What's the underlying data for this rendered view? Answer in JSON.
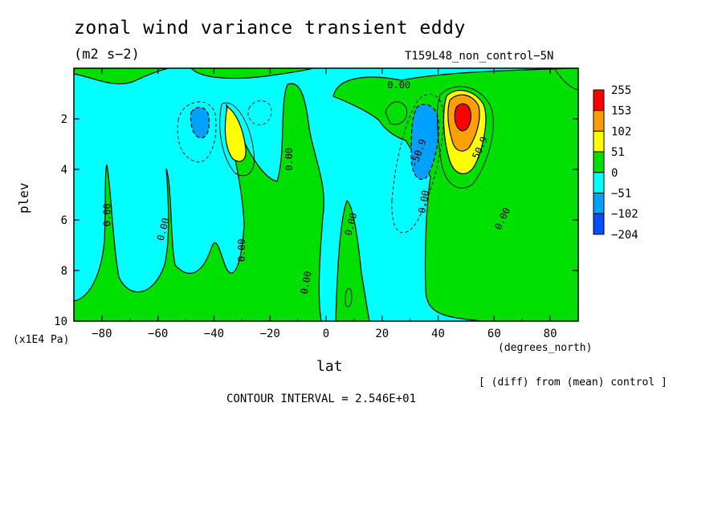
{
  "chart_data": {
    "type": "contour",
    "title": "zonal wind variance transient eddy",
    "units": "(m2 s−2)",
    "run_label": "T159L48_non_control−5N",
    "xlabel": "lat",
    "x_unit": "(degrees_north)",
    "ylabel": "plev",
    "y_unit": "(x1E4 Pa)",
    "xlim": [
      -90,
      90
    ],
    "ylim": [
      0,
      10
    ],
    "y_inverted": true,
    "x_ticks": [
      -80,
      -60,
      -40,
      -20,
      0,
      20,
      40,
      60,
      80
    ],
    "y_ticks": [
      2,
      4,
      6,
      8,
      10
    ],
    "colorbar": {
      "levels": [
        "255",
        "153",
        "102",
        "51",
        "0",
        "−51",
        "−102",
        "−204"
      ],
      "colors": [
        "#ff0000",
        "#ffa000",
        "#ffff00",
        "#00e000",
        "#00ffff",
        "#00a0ff",
        "#0050ff"
      ]
    },
    "contour_labels": [
      {
        "text": "0.00",
        "lat": 26,
        "plev": 0.8,
        "angle": 0
      },
      {
        "text": "0.00",
        "lat": -12,
        "plev": 3.6,
        "angle": -90
      },
      {
        "text": "0.00",
        "lat": -77,
        "plev": 5.8,
        "angle": -90
      },
      {
        "text": "0.00",
        "lat": -57,
        "plev": 6.4,
        "angle": -75
      },
      {
        "text": "0.00",
        "lat": -29,
        "plev": 7.2,
        "angle": -90
      },
      {
        "text": "0.00",
        "lat": -6,
        "plev": 8.5,
        "angle": -80
      },
      {
        "text": "0.00",
        "lat": 10,
        "plev": 6.2,
        "angle": -75
      },
      {
        "text": "0.00",
        "lat": 36,
        "plev": 5.3,
        "angle": -80
      },
      {
        "text": "0.00",
        "lat": 64,
        "plev": 6.0,
        "angle": -65
      },
      {
        "text": "-50.9",
        "lat": 34,
        "plev": 3.4,
        "angle": -70
      },
      {
        "text": "50.9",
        "lat": 56,
        "plev": 3.2,
        "angle": -65
      }
    ],
    "notes": {
      "diff": "[ (diff) from (mean) control ]",
      "contour_interval": "CONTOUR INTERVAL = 2.546E+01"
    }
  }
}
